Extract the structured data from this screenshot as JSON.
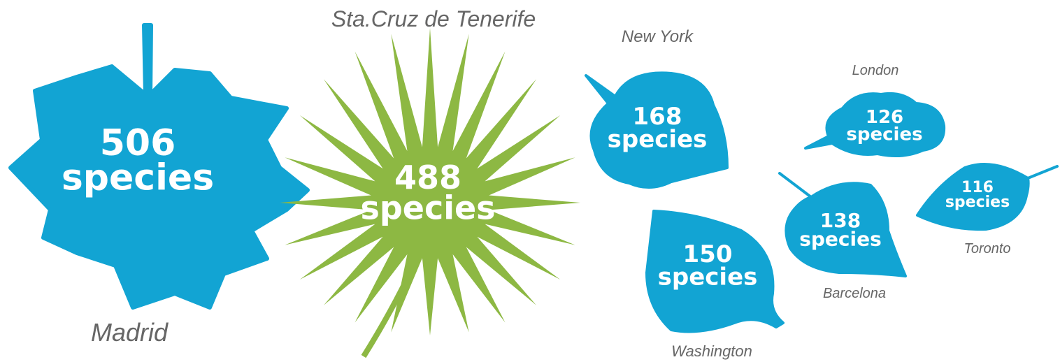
{
  "unit": "species",
  "cities": [
    {
      "name": "Madrid",
      "count": 506
    },
    {
      "name": "Sta.Cruz de Tenerife",
      "count": 488
    },
    {
      "name": "New York",
      "count": 168
    },
    {
      "name": "Washington",
      "count": 150
    },
    {
      "name": "Barcelona",
      "count": 138
    },
    {
      "name": "London",
      "count": 126
    },
    {
      "name": "Toronto",
      "count": 116
    }
  ]
}
